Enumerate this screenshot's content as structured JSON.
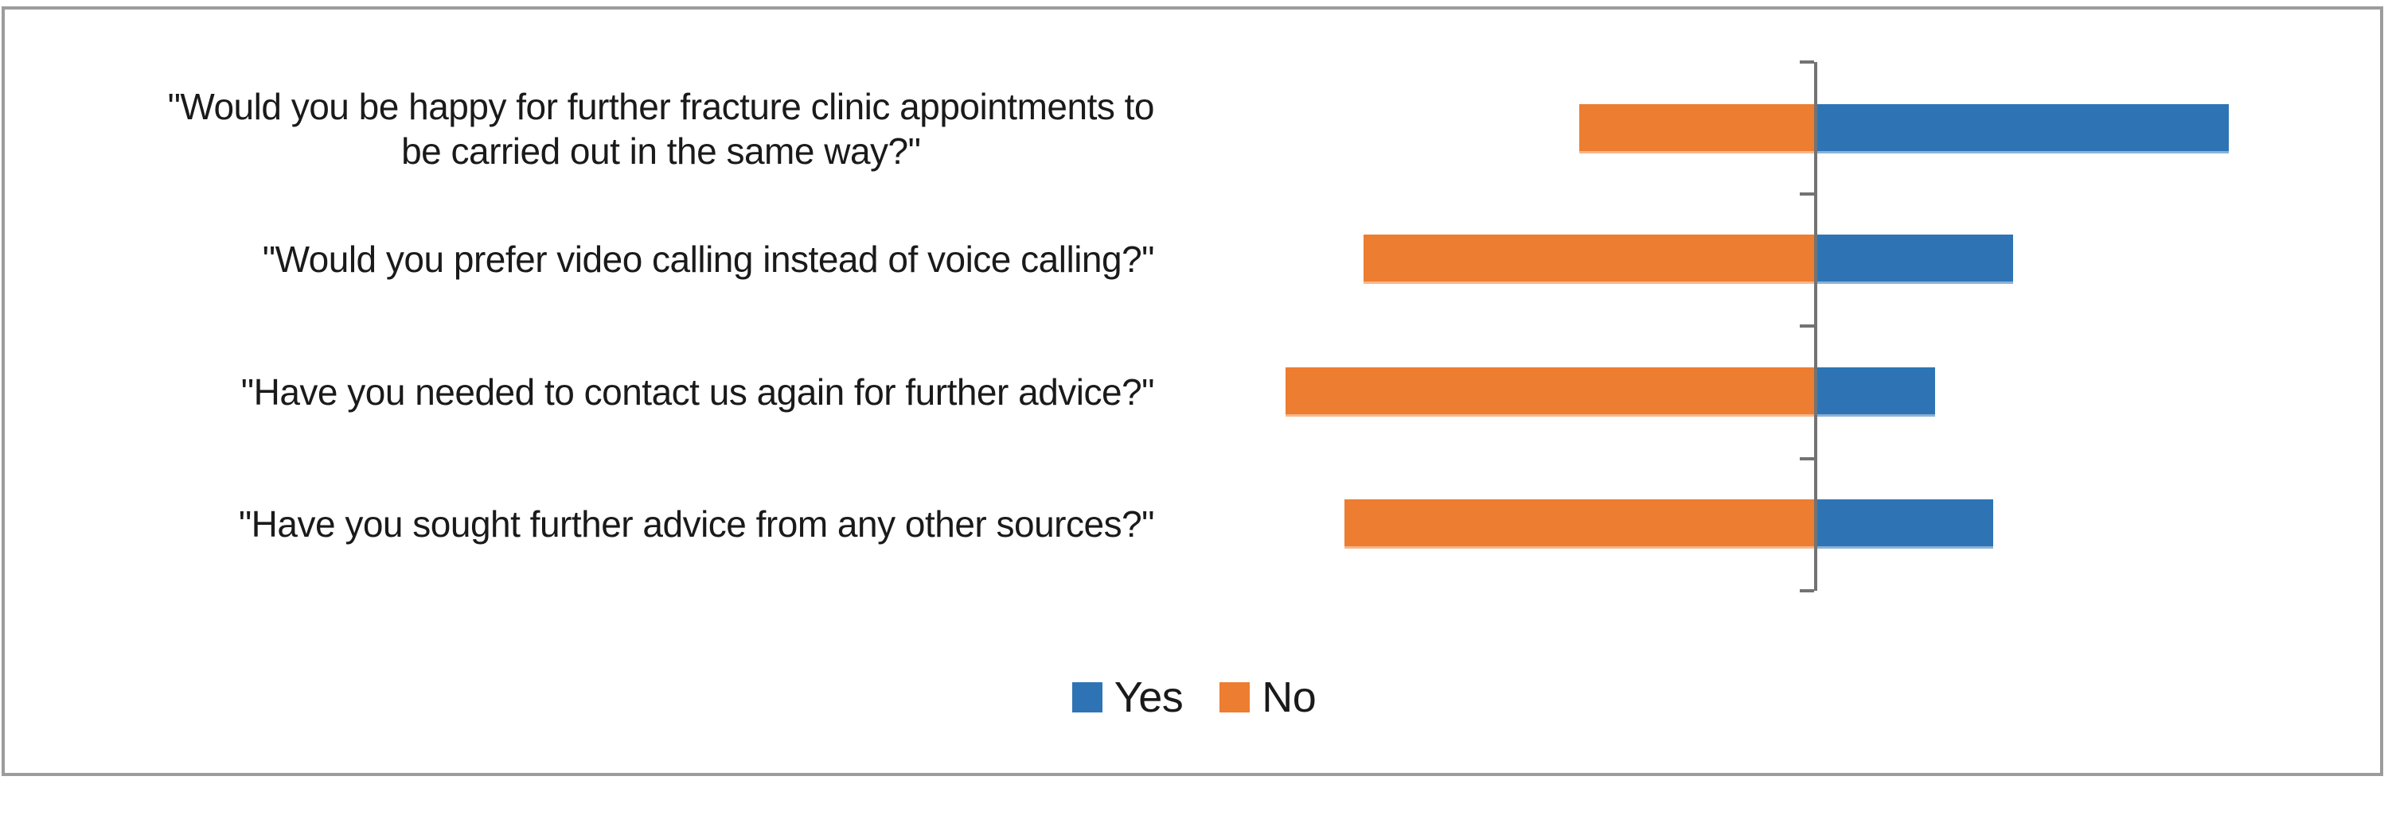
{
  "chart_data": {
    "type": "bar",
    "variant": "diverging-horizontal",
    "title": "",
    "xlabel": "",
    "ylabel": "",
    "categories": [
      "\"Would you be happy for further fracture clinic appointments to\nbe carried out in the same way?\"",
      "\"Would you prefer video calling instead of voice calling?\"",
      "\"Have you needed to contact us again for further advice?\"",
      "\"Have you sought further advice from any other sources?\""
    ],
    "series": [
      {
        "name": "Yes",
        "color": "#2E74B5",
        "values": [
          21,
          10,
          6,
          9
        ]
      },
      {
        "name": "No",
        "color": "#ED7D31",
        "values": [
          12,
          23,
          27,
          24
        ]
      }
    ],
    "legend_position": "bottom-center",
    "grid": false,
    "value_axis_labels_visible": false,
    "data_labels_visible": false,
    "axis_color": "#737373",
    "frame_border_color": "#9C9C9C"
  }
}
